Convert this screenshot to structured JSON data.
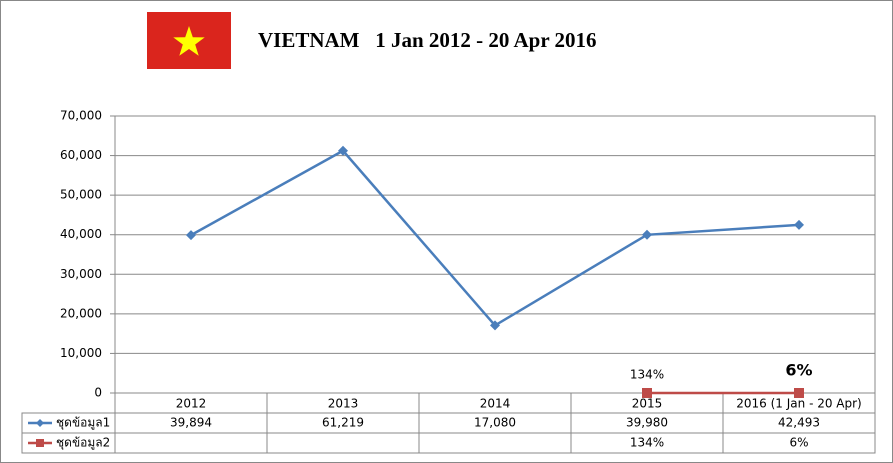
{
  "chart_data": {
    "type": "line",
    "title": "VIETNAM   1 Jan 2012 - 20 Apr 2016",
    "categories": [
      "2012",
      "2013",
      "2014",
      "2015",
      "2016 (1 Jan - 20 Apr)"
    ],
    "series": [
      {
        "name": "ชุดข้อมูล1",
        "color": "#4a7ebb",
        "values": [
          39894,
          61219,
          17080,
          39980,
          42493
        ],
        "value_labels": [
          "39,894",
          "61,219",
          "17,080",
          "39,980",
          "42,493"
        ]
      },
      {
        "name": "ชุดข้อมูล2",
        "color": "#be4b48",
        "values": [
          null,
          null,
          null,
          1.34,
          0.06
        ],
        "value_labels": [
          null,
          null,
          null,
          "134%",
          "6%"
        ]
      }
    ],
    "ylim": [
      0,
      70000
    ],
    "yticks": [
      0,
      {
        "value": 10000,
        "label": "10,000"
      },
      {
        "value": 20000,
        "label": "20,000"
      },
      {
        "value": 30000,
        "label": "30,000"
      },
      {
        "value": 40000,
        "label": "40,000"
      },
      {
        "value": 50000,
        "label": "50,000"
      },
      {
        "value": 60000,
        "label": "60,000"
      },
      {
        "value": 70000,
        "label": "70,000"
      }
    ],
    "grid": true,
    "data_table": true
  }
}
